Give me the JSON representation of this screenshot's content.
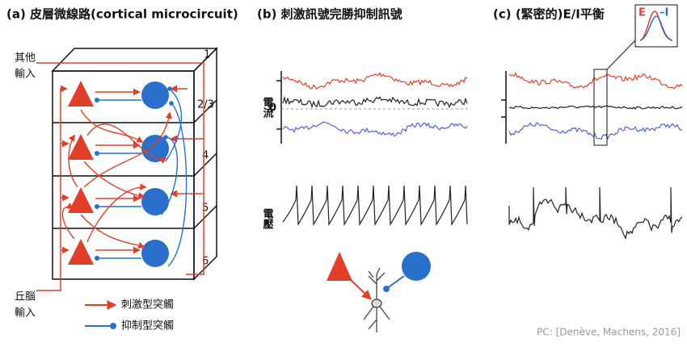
{
  "panel_a": {
    "title": "(a) 皮層微線路(cortical microcircuit)",
    "other_input": [
      "其他",
      "輸入"
    ],
    "layers": [
      "1",
      "2/3",
      "4",
      "5",
      "6"
    ],
    "thalamic_input": [
      "丘腦",
      "輸入"
    ],
    "legend": {
      "excitatory": "刺激型突觸",
      "inhibitory": "抑制型突觸"
    }
  },
  "panel_b": {
    "title": "(b) 刺激訊號完勝抑制訊號",
    "current_label": "電流",
    "zero": "0",
    "voltage_label": "電壓"
  },
  "panel_c": {
    "title": "(c) (緊密的)E/I平衡",
    "inset_e": "E",
    "inset_i": "–I"
  },
  "credit": "PC: [Denève, Machens, 2016]"
}
